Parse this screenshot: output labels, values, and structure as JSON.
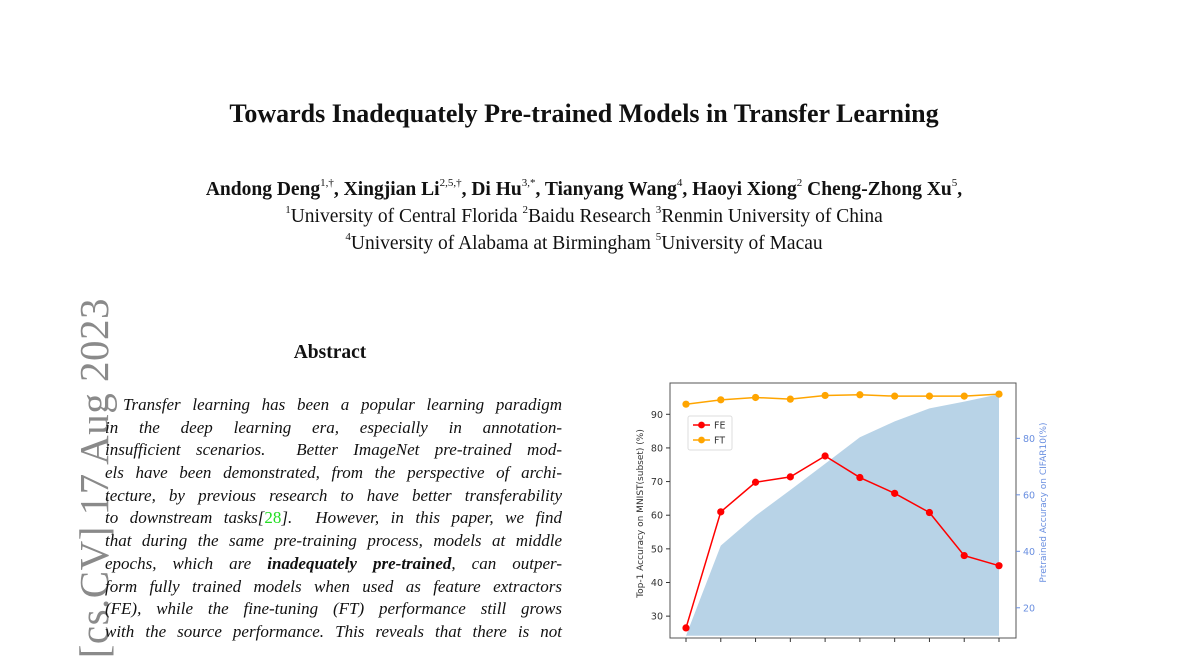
{
  "paper": {
    "title": "Towards Inadequately Pre-trained Models in Transfer Learning",
    "authors": [
      {
        "name": "Andong Deng",
        "sup": "1,†",
        "sep": ", "
      },
      {
        "name": "Xingjian Li",
        "sup": "2,5,†",
        "sep": ", "
      },
      {
        "name": "Di Hu",
        "sup": "3,*",
        "sep": ", "
      },
      {
        "name": "Tianyang Wang",
        "sup": "4",
        "sep": ", "
      },
      {
        "name": "Haoyi Xiong",
        "sup": "2",
        "sep": " "
      },
      {
        "name": "Cheng-Zhong Xu",
        "sup": "5",
        "sep": ","
      }
    ],
    "affiliations_line1": [
      {
        "sup": "1",
        "name": "University of Central Florida "
      },
      {
        "sup": "2",
        "name": "Baidu Research "
      },
      {
        "sup": "3",
        "name": "Renmin University of China"
      }
    ],
    "affiliations_line2": [
      {
        "sup": "4",
        "name": "University of Alabama at Birmingham "
      },
      {
        "sup": "5",
        "name": "University of Macau"
      }
    ],
    "arxiv_stamp": "[cs.CV]  17 Aug 2023",
    "abstract_heading": "Abstract",
    "abstract_lines": [
      [
        {
          "t": "Transfer learning has been a popular learning paradigm"
        }
      ],
      [
        {
          "t": "in the deep learning era, especially in annotation-"
        }
      ],
      [
        {
          "t": "insufficient scenarios.  Better ImageNet pre-trained mod-"
        }
      ],
      [
        {
          "t": "els have been demonstrated, from the perspective of archi-"
        }
      ],
      [
        {
          "t": "tecture, by previous research to have better transferability"
        }
      ],
      [
        {
          "t": "to downstream tasks["
        },
        {
          "t": "28",
          "s": "green"
        },
        {
          "t": "].  However, in this paper, we find"
        }
      ],
      [
        {
          "t": "that during the same pre-training process, models at middle"
        }
      ],
      [
        {
          "t": "epochs, which are "
        },
        {
          "t": "inadequately pre-trained",
          "s": "bold"
        },
        {
          "t": ", can outper-"
        }
      ],
      [
        {
          "t": "form fully trained models when used as feature extractors"
        }
      ],
      [
        {
          "t": "(FE), while the fine-tuning (FT) performance still grows"
        }
      ],
      [
        {
          "t": "with the source performance. This reveals that there is not"
        }
      ]
    ]
  },
  "chart_data": {
    "type": "line",
    "ylabel": "Top-1 Accuracy on MNIST(subset) (%)",
    "ylabel_right": "Pretrained Accuracy on CIFAR10(%)",
    "ylim": [
      23.5,
      99.3
    ],
    "ylim_right": [
      9.3,
      99.6
    ],
    "yticks": [
      30,
      40,
      50,
      60,
      70,
      80,
      90
    ],
    "yticks_right": [
      20,
      40,
      60,
      80
    ],
    "grid": false,
    "legend": "upper-left",
    "series": [
      {
        "name": "FE",
        "color": "#ff0000",
        "axis": "left",
        "values": [
          26.5,
          61.0,
          69.8,
          71.4,
          77.6,
          71.2,
          66.5,
          60.8,
          48.0,
          45.0
        ]
      },
      {
        "name": "FT",
        "color": "#ffa500",
        "axis": "left",
        "values": [
          93.0,
          94.3,
          95.0,
          94.5,
          95.6,
          95.8,
          95.4,
          95.4,
          95.4,
          96.0
        ]
      },
      {
        "type": "area",
        "color": "#b8d3e7",
        "axis": "right",
        "values": [
          10.1,
          42.0,
          52.6,
          61.7,
          71.0,
          80.4,
          86.0,
          90.6,
          93.0,
          95.6
        ]
      }
    ],
    "right_axis_color": "#6a8fe0"
  }
}
